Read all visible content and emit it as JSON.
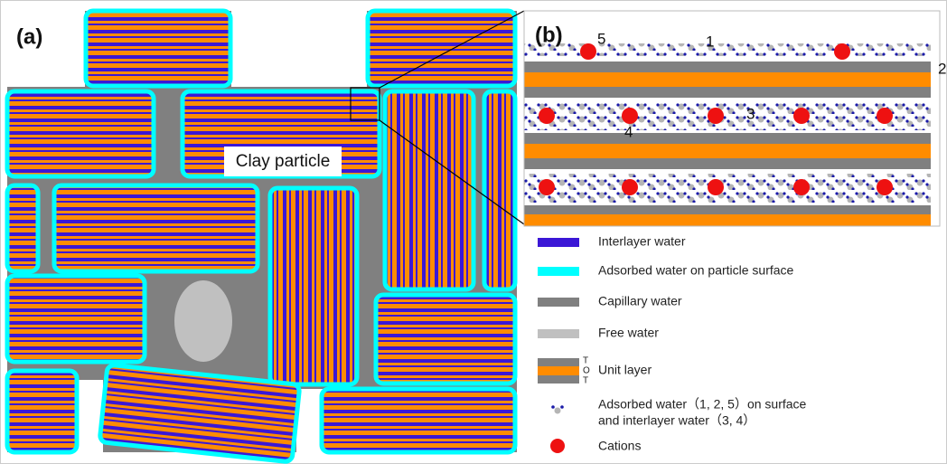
{
  "panel_a": {
    "label": "(a)",
    "annotation": "Clay particle"
  },
  "panel_b": {
    "label": "(b)",
    "site_labels": [
      "1",
      "2",
      "3",
      "4",
      "5"
    ]
  },
  "legend": {
    "items": [
      {
        "label": "Interlayer water"
      },
      {
        "label": "Adsorbed water on particle surface"
      },
      {
        "label": "Capillary water"
      },
      {
        "label": "Free water"
      },
      {
        "label": "Unit layer",
        "layer_letters": [
          "T",
          "O",
          "T"
        ]
      },
      {
        "label": [
          "Adsorbed water（1, 2, 5）on surface",
          "and interlayer water（3, 4）"
        ]
      },
      {
        "label": "Cations"
      }
    ]
  }
}
